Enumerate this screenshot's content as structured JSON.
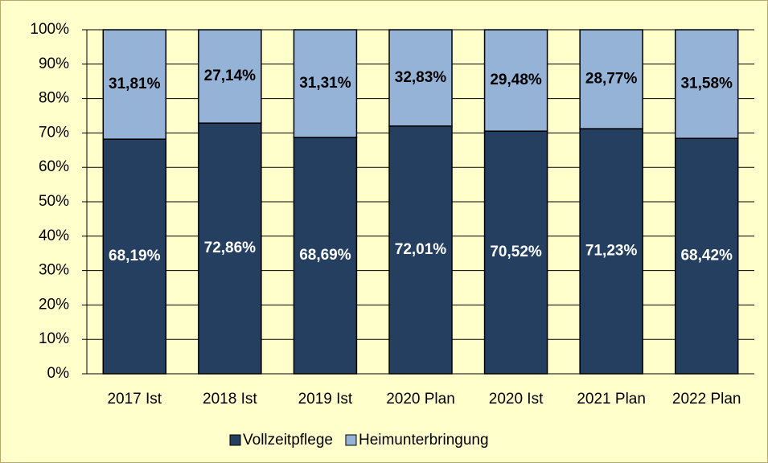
{
  "chart_data": {
    "type": "stacked_bar",
    "categories": [
      "2017 Ist",
      "2018 Ist",
      "2019 Ist",
      "2020 Plan",
      "2020 Ist",
      "2021 Plan",
      "2022 Plan"
    ],
    "series": [
      {
        "name": "Vollzeitpflege",
        "color": "#243f60",
        "values": [
          68.19,
          72.86,
          68.69,
          72.01,
          70.52,
          71.23,
          68.42
        ],
        "value_labels": [
          "68,19%",
          "72,86%",
          "68,69%",
          "72,01%",
          "70,52%",
          "71,23%",
          "68,42%"
        ]
      },
      {
        "name": "Heimunterbringung",
        "color": "#95b3d7",
        "values": [
          31.81,
          27.14,
          31.31,
          32.83,
          29.48,
          28.77,
          31.58
        ],
        "value_labels": [
          "31,81%",
          "27,14%",
          "31,31%",
          "32,83%",
          "29,48%",
          "28,77%",
          "31,58%"
        ]
      }
    ],
    "ylim": [
      0,
      100
    ],
    "yticks": [
      {
        "value": 0,
        "label": "0%"
      },
      {
        "value": 10,
        "label": "10%"
      },
      {
        "value": 20,
        "label": "20%"
      },
      {
        "value": 30,
        "label": "30%"
      },
      {
        "value": 40,
        "label": "40%"
      },
      {
        "value": 50,
        "label": "50%"
      },
      {
        "value": 60,
        "label": "60%"
      },
      {
        "value": 70,
        "label": "70%"
      },
      {
        "value": 80,
        "label": "80%"
      },
      {
        "value": 90,
        "label": "90%"
      },
      {
        "value": 100,
        "label": "100%"
      }
    ],
    "grid": true,
    "legend": "bottom"
  }
}
